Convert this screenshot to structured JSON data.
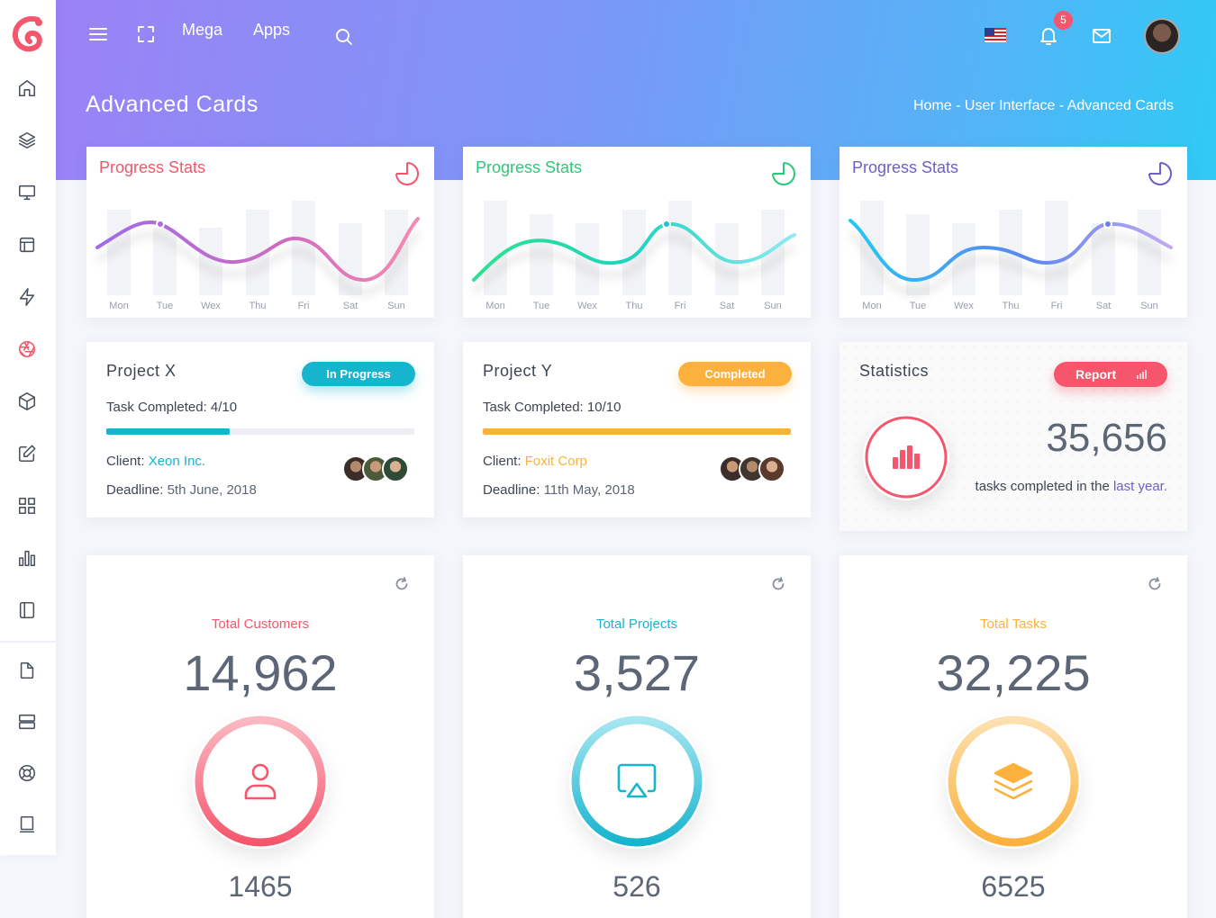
{
  "header": {
    "menu_links": [
      "Mega",
      "Apps"
    ],
    "notification_count": "5",
    "page_title": "Advanced Cards",
    "breadcrumb": "Home - User Interface - Advanced Cards"
  },
  "progress_cards": [
    {
      "title": "Progress Stats",
      "color": "#f5566c",
      "days": [
        "Mon",
        "Tue",
        "Wex",
        "Thu",
        "Fri",
        "Sat",
        "Sun"
      ]
    },
    {
      "title": "Progress Stats",
      "color": "#2ac97a",
      "days": [
        "Mon",
        "Tue",
        "Wex",
        "Thu",
        "Fri",
        "Sat",
        "Sun"
      ]
    },
    {
      "title": "Progress Stats",
      "color": "#6c5fc8",
      "days": [
        "Mon",
        "Tue",
        "Wex",
        "Thu",
        "Fri",
        "Sat",
        "Sun"
      ]
    }
  ],
  "projects": [
    {
      "title": "Project X",
      "status": "In Progress",
      "task": "Task Completed: 4/10",
      "progress": 0.4,
      "client_label": "Client:",
      "client": "Xeon Inc.",
      "deadline_label": "Deadline:",
      "deadline": "5th June, 2018",
      "accent": "#17b4ce"
    },
    {
      "title": "Project Y",
      "status": "Completed",
      "task": "Task Completed: 10/10",
      "progress": 1.0,
      "client_label": "Client:",
      "client": "Foxit Corp",
      "deadline_label": "Deadline:",
      "deadline": "11th May, 2018",
      "accent": "#fbb13c"
    }
  ],
  "statistics": {
    "title": "Statistics",
    "button": "Report",
    "value": "35,656",
    "caption_prefix": "tasks completed in the",
    "caption_link": "last year."
  },
  "totals": [
    {
      "title": "Total Customers",
      "value": "14,962",
      "sub": "1465",
      "color": "#f5566c",
      "icon": "user-icon"
    },
    {
      "title": "Total Projects",
      "value": "3,527",
      "sub": "526",
      "color": "#17b4ce",
      "icon": "airplay-icon"
    },
    {
      "title": "Total Tasks",
      "value": "32,225",
      "sub": "6525",
      "color": "#fbb13c",
      "icon": "layers-icon"
    }
  ]
}
